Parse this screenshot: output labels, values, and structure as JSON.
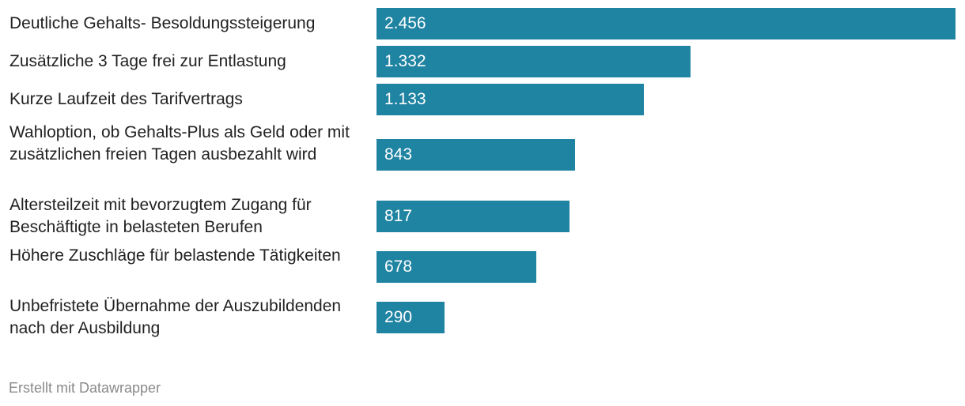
{
  "chart_data": {
    "type": "bar",
    "orientation": "horizontal",
    "categories": [
      "Deutliche Gehalts- Besoldungssteigerung",
      "Zusätzliche 3 Tage frei zur Entlastung",
      "Kurze Laufzeit des Tarifvertrags",
      "Wahloption, ob Gehalts-Plus als Geld oder mit zusätzlichen freien Tagen ausbezahlt wird",
      "Altersteilzeit mit bevorzugtem Zugang für Beschäftigte in belasteten Berufen",
      "Höhere Zuschläge für belastende Tätigkeiten",
      "Unbefristete Übernahme der Auszubildenden nach der Ausbildung"
    ],
    "values": [
      2456,
      1332,
      1133,
      843,
      817,
      678,
      290
    ],
    "value_labels": [
      "2.456",
      "1.332",
      "1.133",
      "843",
      "817",
      "678",
      "290"
    ],
    "xlim": [
      0,
      2456
    ],
    "title": "",
    "xlabel": "",
    "ylabel": "",
    "grid": false,
    "bar_color": "#1f83a2"
  },
  "footer": {
    "credit": "Erstellt mit Datawrapper"
  }
}
